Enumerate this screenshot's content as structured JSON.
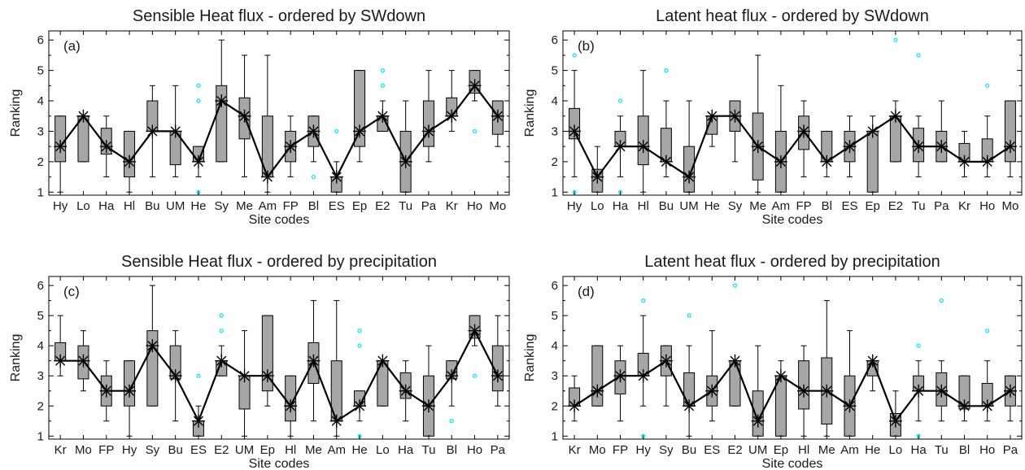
{
  "chart_data": [
    {
      "type": "box",
      "title": "Sensible Heat flux - ordered by SWdown",
      "panel_label": "(a)",
      "xlabel": "Site codes",
      "ylabel": "Ranking",
      "ylim": [
        0.9,
        6.3
      ],
      "yticks": [
        1,
        2,
        3,
        4,
        5,
        6
      ],
      "categories": [
        "Hy",
        "Lo",
        "Ha",
        "Hl",
        "Bu",
        "UM",
        "He",
        "Sy",
        "Me",
        "Am",
        "FP",
        "Bl",
        "ES",
        "Ep",
        "E2",
        "Tu",
        "Pa",
        "Kr",
        "Ho",
        "Mo"
      ],
      "series": [
        {
          "q1": 2.0,
          "q3": 3.5,
          "wlo": 1.0,
          "whi": 3.5,
          "median": 2.5,
          "out": []
        },
        {
          "q1": 2.0,
          "q3": 3.5,
          "wlo": 2.0,
          "whi": 3.5,
          "median": 3.5,
          "out": []
        },
        {
          "q1": 2.25,
          "q3": 3.1,
          "wlo": 1.5,
          "whi": 3.5,
          "median": 2.5,
          "out": []
        },
        {
          "q1": 1.5,
          "q3": 3.0,
          "wlo": 1.0,
          "whi": 3.0,
          "median": 2.0,
          "out": []
        },
        {
          "q1": 3.0,
          "q3": 4.0,
          "wlo": 1.5,
          "whi": 4.5,
          "median": 3.0,
          "out": []
        },
        {
          "q1": 1.9,
          "q3": 3.0,
          "wlo": 1.5,
          "whi": 4.5,
          "median": 3.0,
          "out": []
        },
        {
          "q1": 2.0,
          "q3": 2.5,
          "wlo": 1.5,
          "whi": 2.5,
          "median": 2.0,
          "out": [
            1.0,
            4.0,
            4.5
          ]
        },
        {
          "q1": 2.0,
          "q3": 4.5,
          "wlo": 2.0,
          "whi": 6.0,
          "median": 4.0,
          "out": []
        },
        {
          "q1": 2.75,
          "q3": 4.1,
          "wlo": 1.5,
          "whi": 5.5,
          "median": 3.5,
          "out": []
        },
        {
          "q1": 1.5,
          "q3": 3.5,
          "wlo": 1.0,
          "whi": 5.5,
          "median": 1.5,
          "out": []
        },
        {
          "q1": 2.0,
          "q3": 3.0,
          "wlo": 1.5,
          "whi": 3.5,
          "median": 2.5,
          "out": []
        },
        {
          "q1": 2.5,
          "q3": 3.5,
          "wlo": 2.0,
          "whi": 3.5,
          "median": 3.0,
          "out": [
            1.5
          ]
        },
        {
          "q1": 1.0,
          "q3": 1.5,
          "wlo": 1.0,
          "whi": 2.0,
          "median": 1.5,
          "out": [
            3.0
          ]
        },
        {
          "q1": 2.5,
          "q3": 5.0,
          "wlo": 2.0,
          "whi": 5.0,
          "median": 3.0,
          "out": []
        },
        {
          "q1": 3.0,
          "q3": 3.5,
          "wlo": 3.0,
          "whi": 4.0,
          "median": 3.5,
          "out": [
            4.5,
            5.0
          ]
        },
        {
          "q1": 1.0,
          "q3": 3.0,
          "wlo": 1.0,
          "whi": 4.0,
          "median": 2.0,
          "out": []
        },
        {
          "q1": 2.5,
          "q3": 4.0,
          "wlo": 2.0,
          "whi": 5.0,
          "median": 3.0,
          "out": []
        },
        {
          "q1": 3.5,
          "q3": 4.1,
          "wlo": 3.0,
          "whi": 5.0,
          "median": 3.5,
          "out": []
        },
        {
          "q1": 4.25,
          "q3": 5.0,
          "wlo": 4.0,
          "whi": 5.0,
          "median": 4.5,
          "out": [
            3.0
          ]
        },
        {
          "q1": 2.9,
          "q3": 4.0,
          "wlo": 2.5,
          "whi": 4.0,
          "median": 3.5,
          "out": []
        }
      ]
    },
    {
      "type": "box",
      "title": "Latent heat flux - ordered by SWdown",
      "panel_label": "(b)",
      "xlabel": "Site codes",
      "ylabel": "Ranking",
      "ylim": [
        0.9,
        6.3
      ],
      "yticks": [
        1,
        2,
        3,
        4,
        5,
        6
      ],
      "categories": [
        "Hy",
        "Lo",
        "Ha",
        "Hl",
        "Bu",
        "UM",
        "He",
        "Sy",
        "Me",
        "Am",
        "FP",
        "Bl",
        "ES",
        "Ep",
        "E2",
        "Tu",
        "Pa",
        "Kr",
        "Ho",
        "Mo"
      ],
      "series": [
        {
          "q1": 2.75,
          "q3": 3.75,
          "wlo": 1.5,
          "whi": 5.0,
          "median": 3.0,
          "out": [
            1.0,
            5.5
          ]
        },
        {
          "q1": 1.0,
          "q3": 1.75,
          "wlo": 1.0,
          "whi": 2.5,
          "median": 1.5,
          "out": []
        },
        {
          "q1": 2.5,
          "q3": 3.0,
          "wlo": 1.5,
          "whi": 3.5,
          "median": 2.5,
          "out": [
            1.0,
            4.0
          ]
        },
        {
          "q1": 1.9,
          "q3": 3.5,
          "wlo": 1.0,
          "whi": 5.0,
          "median": 2.5,
          "out": []
        },
        {
          "q1": 2.0,
          "q3": 3.1,
          "wlo": 1.5,
          "whi": 4.0,
          "median": 2.0,
          "out": [
            5.0
          ]
        },
        {
          "q1": 1.0,
          "q3": 2.5,
          "wlo": 1.0,
          "whi": 4.0,
          "median": 1.5,
          "out": []
        },
        {
          "q1": 2.9,
          "q3": 3.5,
          "wlo": 2.5,
          "whi": 3.5,
          "median": 3.5,
          "out": []
        },
        {
          "q1": 3.0,
          "q3": 4.0,
          "wlo": 2.0,
          "whi": 4.0,
          "median": 3.5,
          "out": []
        },
        {
          "q1": 1.4,
          "q3": 3.6,
          "wlo": 1.0,
          "whi": 5.5,
          "median": 2.5,
          "out": []
        },
        {
          "q1": 1.0,
          "q3": 3.0,
          "wlo": 1.0,
          "whi": 4.5,
          "median": 2.0,
          "out": []
        },
        {
          "q1": 2.4,
          "q3": 3.5,
          "wlo": 1.5,
          "whi": 4.0,
          "median": 3.0,
          "out": []
        },
        {
          "q1": 2.0,
          "q3": 3.0,
          "wlo": 1.5,
          "whi": 3.0,
          "median": 2.0,
          "out": []
        },
        {
          "q1": 2.0,
          "q3": 3.0,
          "wlo": 1.5,
          "whi": 3.5,
          "median": 2.5,
          "out": []
        },
        {
          "q1": 1.0,
          "q3": 3.0,
          "wlo": 1.0,
          "whi": 3.5,
          "median": 3.0,
          "out": []
        },
        {
          "q1": 2.0,
          "q3": 3.5,
          "wlo": 2.0,
          "whi": 4.0,
          "median": 3.5,
          "out": [
            6.0
          ]
        },
        {
          "q1": 2.0,
          "q3": 3.1,
          "wlo": 1.5,
          "whi": 3.5,
          "median": 2.5,
          "out": [
            5.5
          ]
        },
        {
          "q1": 2.0,
          "q3": 3.0,
          "wlo": 2.0,
          "whi": 4.0,
          "median": 2.5,
          "out": []
        },
        {
          "q1": 2.0,
          "q3": 2.6,
          "wlo": 1.5,
          "whi": 3.0,
          "median": 2.0,
          "out": []
        },
        {
          "q1": 2.0,
          "q3": 2.75,
          "wlo": 1.5,
          "whi": 3.5,
          "median": 2.0,
          "out": [
            4.5
          ]
        },
        {
          "q1": 2.0,
          "q3": 4.0,
          "wlo": 1.5,
          "whi": 4.0,
          "median": 2.5,
          "out": []
        }
      ]
    },
    {
      "type": "box",
      "title": "Sensible Heat flux - ordered by precipitation",
      "panel_label": "(c)",
      "xlabel": "Site codes",
      "ylabel": "Ranking",
      "ylim": [
        0.9,
        6.3
      ],
      "yticks": [
        1,
        2,
        3,
        4,
        5,
        6
      ],
      "categories": [
        "Kr",
        "Mo",
        "FP",
        "Hy",
        "Sy",
        "Bu",
        "ES",
        "E2",
        "UM",
        "Ep",
        "Hl",
        "Me",
        "Am",
        "He",
        "Lo",
        "Ha",
        "Tu",
        "Bl",
        "Ho",
        "Pa"
      ],
      "series": [
        {
          "q1": 3.5,
          "q3": 4.1,
          "wlo": 3.0,
          "whi": 5.0,
          "median": 3.5,
          "out": []
        },
        {
          "q1": 2.9,
          "q3": 4.0,
          "wlo": 2.5,
          "whi": 4.5,
          "median": 3.5,
          "out": []
        },
        {
          "q1": 2.0,
          "q3": 3.0,
          "wlo": 1.5,
          "whi": 3.5,
          "median": 2.5,
          "out": []
        },
        {
          "q1": 2.0,
          "q3": 3.5,
          "wlo": 1.0,
          "whi": 3.5,
          "median": 2.5,
          "out": []
        },
        {
          "q1": 2.0,
          "q3": 4.5,
          "wlo": 2.0,
          "whi": 6.0,
          "median": 4.0,
          "out": []
        },
        {
          "q1": 2.9,
          "q3": 4.0,
          "wlo": 1.5,
          "whi": 4.5,
          "median": 3.0,
          "out": []
        },
        {
          "q1": 1.0,
          "q3": 1.5,
          "wlo": 1.0,
          "whi": 2.0,
          "median": 1.5,
          "out": [
            3.0
          ]
        },
        {
          "q1": 3.0,
          "q3": 3.5,
          "wlo": 3.0,
          "whi": 4.0,
          "median": 3.5,
          "out": [
            4.5,
            5.0
          ]
        },
        {
          "q1": 1.9,
          "q3": 3.0,
          "wlo": 1.0,
          "whi": 4.5,
          "median": 3.0,
          "out": []
        },
        {
          "q1": 2.5,
          "q3": 5.0,
          "wlo": 2.0,
          "whi": 5.0,
          "median": 3.0,
          "out": []
        },
        {
          "q1": 1.5,
          "q3": 3.0,
          "wlo": 1.0,
          "whi": 3.0,
          "median": 2.0,
          "out": []
        },
        {
          "q1": 2.75,
          "q3": 4.1,
          "wlo": 1.5,
          "whi": 5.5,
          "median": 3.5,
          "out": []
        },
        {
          "q1": 1.5,
          "q3": 3.5,
          "wlo": 1.0,
          "whi": 5.5,
          "median": 1.5,
          "out": []
        },
        {
          "q1": 2.0,
          "q3": 2.5,
          "wlo": 1.5,
          "whi": 2.5,
          "median": 2.0,
          "out": [
            1.0,
            4.0,
            4.5
          ]
        },
        {
          "q1": 2.0,
          "q3": 3.5,
          "wlo": 2.0,
          "whi": 3.5,
          "median": 3.5,
          "out": []
        },
        {
          "q1": 2.25,
          "q3": 3.1,
          "wlo": 1.5,
          "whi": 3.5,
          "median": 2.5,
          "out": []
        },
        {
          "q1": 1.0,
          "q3": 3.0,
          "wlo": 1.0,
          "whi": 4.0,
          "median": 2.0,
          "out": []
        },
        {
          "q1": 2.9,
          "q3": 3.5,
          "wlo": 2.0,
          "whi": 3.5,
          "median": 3.0,
          "out": [
            1.5
          ]
        },
        {
          "q1": 4.25,
          "q3": 5.0,
          "wlo": 4.0,
          "whi": 5.0,
          "median": 4.5,
          "out": [
            3.0
          ]
        },
        {
          "q1": 2.5,
          "q3": 4.0,
          "wlo": 2.0,
          "whi": 5.0,
          "median": 3.0,
          "out": []
        }
      ]
    },
    {
      "type": "box",
      "title": "Latent heat flux - ordered by precipitation",
      "panel_label": "(d)",
      "xlabel": "Site codes",
      "ylabel": "Ranking",
      "ylim": [
        0.9,
        6.3
      ],
      "yticks": [
        1,
        2,
        3,
        4,
        5,
        6
      ],
      "categories": [
        "Kr",
        "Mo",
        "FP",
        "Hy",
        "Sy",
        "Bu",
        "ES",
        "E2",
        "UM",
        "Ep",
        "Hl",
        "Me",
        "Am",
        "He",
        "Lo",
        "Ha",
        "Tu",
        "Bl",
        "Ho",
        "Pa"
      ],
      "series": [
        {
          "q1": 2.0,
          "q3": 2.6,
          "wlo": 1.5,
          "whi": 3.0,
          "median": 2.0,
          "out": []
        },
        {
          "q1": 2.0,
          "q3": 4.0,
          "wlo": 2.0,
          "whi": 4.0,
          "median": 2.5,
          "out": []
        },
        {
          "q1": 2.4,
          "q3": 3.5,
          "wlo": 1.5,
          "whi": 4.0,
          "median": 3.0,
          "out": []
        },
        {
          "q1": 3.0,
          "q3": 3.75,
          "wlo": 2.0,
          "whi": 5.0,
          "median": 3.0,
          "out": [
            1.0,
            5.5
          ]
        },
        {
          "q1": 3.0,
          "q3": 4.0,
          "wlo": 2.0,
          "whi": 4.0,
          "median": 3.5,
          "out": []
        },
        {
          "q1": 2.0,
          "q3": 3.1,
          "wlo": 1.0,
          "whi": 4.0,
          "median": 2.0,
          "out": [
            5.0
          ]
        },
        {
          "q1": 2.0,
          "q3": 3.0,
          "wlo": 1.5,
          "whi": 4.5,
          "median": 2.5,
          "out": []
        },
        {
          "q1": 2.0,
          "q3": 3.5,
          "wlo": 2.0,
          "whi": 3.5,
          "median": 3.5,
          "out": [
            6.0
          ]
        },
        {
          "q1": 1.0,
          "q3": 2.5,
          "wlo": 1.0,
          "whi": 4.0,
          "median": 1.5,
          "out": []
        },
        {
          "q1": 1.0,
          "q3": 3.0,
          "wlo": 1.0,
          "whi": 3.5,
          "median": 3.0,
          "out": []
        },
        {
          "q1": 1.9,
          "q3": 3.5,
          "wlo": 1.0,
          "whi": 4.0,
          "median": 2.5,
          "out": []
        },
        {
          "q1": 1.4,
          "q3": 3.6,
          "wlo": 1.0,
          "whi": 5.5,
          "median": 2.5,
          "out": []
        },
        {
          "q1": 1.0,
          "q3": 3.0,
          "wlo": 1.0,
          "whi": 4.5,
          "median": 2.0,
          "out": []
        },
        {
          "q1": 3.0,
          "q3": 3.5,
          "wlo": 2.5,
          "whi": 3.5,
          "median": 3.5,
          "out": []
        },
        {
          "q1": 1.0,
          "q3": 1.75,
          "wlo": 1.0,
          "whi": 2.5,
          "median": 1.5,
          "out": []
        },
        {
          "q1": 2.5,
          "q3": 3.0,
          "wlo": 1.5,
          "whi": 3.5,
          "median": 2.5,
          "out": [
            1.0,
            4.0
          ]
        },
        {
          "q1": 2.0,
          "q3": 3.1,
          "wlo": 1.5,
          "whi": 3.5,
          "median": 2.5,
          "out": [
            5.5
          ]
        },
        {
          "q1": 1.9,
          "q3": 3.0,
          "wlo": 1.5,
          "whi": 3.0,
          "median": 2.0,
          "out": []
        },
        {
          "q1": 2.0,
          "q3": 2.75,
          "wlo": 1.5,
          "whi": 3.5,
          "median": 2.0,
          "out": [
            4.5
          ]
        },
        {
          "q1": 2.0,
          "q3": 3.0,
          "wlo": 1.5,
          "whi": 3.0,
          "median": 2.5,
          "out": []
        }
      ]
    }
  ],
  "style": {
    "box_fill": "#a6a6a6",
    "line_color": "#000000",
    "outlier_color": "#00e5ee",
    "background": "#ffffff"
  }
}
